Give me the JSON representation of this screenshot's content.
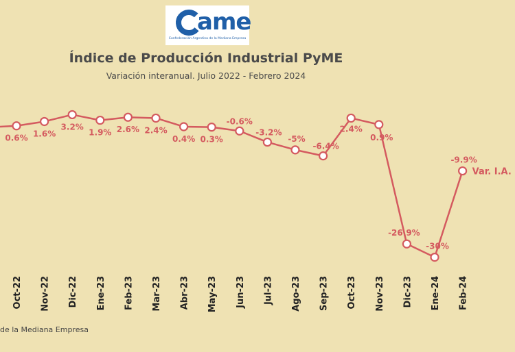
{
  "logo": {
    "wordmark": "ame",
    "tagline": "Confederación Argentina de la Mediana Empresa"
  },
  "header": {
    "title": "Índice de Producción Industrial PyME",
    "subtitle": "Variación interanual. Julio 2022 - Febrero 2024"
  },
  "source": "de la Mediana Empresa",
  "chart_data": {
    "type": "line",
    "title": "Índice de Producción Industrial PyME",
    "subtitle": "Variación interanual. Julio 2022 - Febrero 2024",
    "categories": [
      "Oct-22",
      "Nov-22",
      "Dic-22",
      "Ene-23",
      "Feb-23",
      "Mar-23",
      "Abr-23",
      "May-23",
      "Jun-23",
      "Jul-23",
      "Ago-23",
      "Sep-23",
      "Oct-23",
      "Nov-23",
      "Dic-23",
      "Ene-24",
      "Feb-24"
    ],
    "series": [
      {
        "name": "Var. I.A.",
        "values": [
          0.6,
          1.6,
          3.2,
          1.9,
          2.6,
          2.4,
          0.4,
          0.3,
          -0.6,
          -3.2,
          -5,
          -6.4,
          2.4,
          0.9,
          -26.9,
          -30,
          -9.9
        ],
        "labels": [
          "0.6%",
          "1.6%",
          "3.2%",
          "1.9%",
          "2.6%",
          "2.4%",
          "0.4%",
          "0.3%",
          "-0.6%",
          "-3.2%",
          "-5%",
          "-6.4%",
          "2.4%",
          "0.9%",
          "-26.9%",
          "-30%",
          "-9.9%"
        ]
      }
    ],
    "color": "#d45a5f",
    "grid": false
  }
}
